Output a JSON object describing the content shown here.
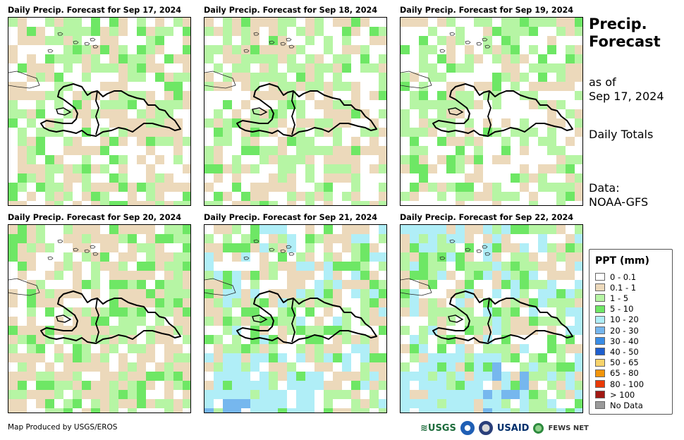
{
  "panels": [
    {
      "title": "Daily Precip. Forecast for Sep 17, 2024"
    },
    {
      "title": "Daily Precip. Forecast for Sep 18, 2024"
    },
    {
      "title": "Daily Precip. Forecast for Sep 19, 2024"
    },
    {
      "title": "Daily Precip. Forecast for Sep 20, 2024"
    },
    {
      "title": "Daily Precip. Forecast for Sep 21, 2024"
    },
    {
      "title": "Daily Precip. Forecast for Sep 22, 2024"
    }
  ],
  "side": {
    "title_line1": "Precip.",
    "title_line2": "Forecast",
    "asof_line1": "as of",
    "asof_line2": "Sep 17, 2024",
    "totals": "Daily Totals",
    "data_line1": "Data:",
    "data_line2": "NOAA-GFS"
  },
  "legend": {
    "title": "PPT (mm)",
    "items": [
      {
        "label": "0 - 0.1",
        "color": "#ffffff"
      },
      {
        "label": "0.1 - 1",
        "color": "#ecd9bb"
      },
      {
        "label": "1 - 5",
        "color": "#b6f5a4"
      },
      {
        "label": "5 - 10",
        "color": "#6ee765"
      },
      {
        "label": "10 - 20",
        "color": "#b0eef7"
      },
      {
        "label": "20 - 30",
        "color": "#76b7ee"
      },
      {
        "label": "30 - 40",
        "color": "#3a8de6"
      },
      {
        "label": "40 - 50",
        "color": "#1e5fcf"
      },
      {
        "label": "50 - 65",
        "color": "#f7d36b"
      },
      {
        "label": "65 - 80",
        "color": "#f2950a"
      },
      {
        "label": "80 - 100",
        "color": "#ea3a06"
      },
      {
        "label": "> 100",
        "color": "#a11813"
      },
      {
        "label": "No Data",
        "color": "#9a9a9a"
      }
    ]
  },
  "credit": "Map Produced by USGS/EROS",
  "logos": {
    "usgs": "≋USGS",
    "usaid": "USAID",
    "fewsnet": "FEWS NET"
  }
}
